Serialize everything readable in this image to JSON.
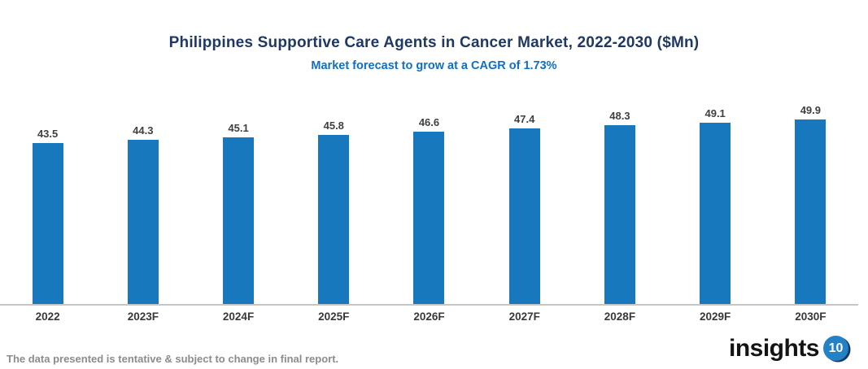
{
  "header": {
    "title": "Philippines Supportive Care Agents in Cancer Market, 2022-2030 ($Mn)",
    "subtitle": "Market forecast to grow at a CAGR of 1.73%"
  },
  "chart_data": {
    "type": "bar",
    "categories": [
      "2022",
      "2023F",
      "2024F",
      "2025F",
      "2026F",
      "2027F",
      "2028F",
      "2029F",
      "2030F"
    ],
    "values": [
      43.5,
      44.3,
      45.1,
      45.8,
      46.6,
      47.4,
      48.3,
      49.1,
      49.9
    ],
    "title": "Philippines Supportive Care Agents in Cancer Market, 2022-2030 ($Mn)",
    "subtitle": "Market forecast to grow at a CAGR of 1.73%",
    "xlabel": "",
    "ylabel": "",
    "ylim": [
      0,
      58
    ],
    "grid": false,
    "legend": "none",
    "value_labels": true,
    "bar_color": "#1878be"
  },
  "footer": {
    "note": "The data presented is tentative & subject to change in final report.",
    "logo_word": "insights",
    "logo_badge": "10"
  },
  "colors": {
    "title": "#203864",
    "subtitle": "#0e6fc8",
    "bar": "#1878be",
    "axis_line": "#c6c6c6",
    "value_label": "#404040",
    "category_label": "#383838",
    "note": "#8c8c8c",
    "logo_badge_bg": "#2381c6",
    "logo_badge_shadow": "#18365e"
  }
}
